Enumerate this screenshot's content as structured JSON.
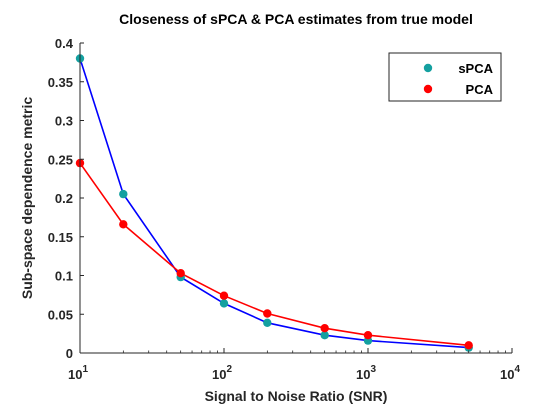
{
  "chart_data": {
    "type": "line",
    "title": "Closeness of sPCA & PCA estimates from true model",
    "xlabel": "Signal to Noise Ratio (SNR)",
    "ylabel": "Sub-space dependence metric",
    "xscale": "log",
    "xlim": [
      10,
      10000
    ],
    "ylim": [
      0,
      0.4
    ],
    "x_ticks": [
      {
        "base": "10",
        "exp": "1",
        "value": 10
      },
      {
        "base": "10",
        "exp": "2",
        "value": 100
      },
      {
        "base": "10",
        "exp": "3",
        "value": 1000
      },
      {
        "base": "10",
        "exp": "4",
        "value": 10000
      }
    ],
    "y_ticks": [
      {
        "label": "0",
        "value": 0
      },
      {
        "label": "0.05",
        "value": 0.05
      },
      {
        "label": "0.1",
        "value": 0.1
      },
      {
        "label": "0.15",
        "value": 0.15
      },
      {
        "label": "0.2",
        "value": 0.2
      },
      {
        "label": "0.25",
        "value": 0.25
      },
      {
        "label": "0.3",
        "value": 0.3
      },
      {
        "label": "0.35",
        "value": 0.35
      },
      {
        "label": "0.4",
        "value": 0.4
      }
    ],
    "grid": false,
    "legend_position": "top-right",
    "series": [
      {
        "name": "sPCA",
        "line_color": "#0000ff",
        "marker_color": "#14a0a0",
        "x": [
          10,
          20,
          50,
          100,
          200,
          500,
          1000,
          5000
        ],
        "y": [
          0.38,
          0.205,
          0.098,
          0.064,
          0.039,
          0.023,
          0.016,
          0.007
        ]
      },
      {
        "name": "PCA",
        "line_color": "#ff0000",
        "marker_color": "#ff0000",
        "x": [
          10,
          20,
          50,
          100,
          200,
          500,
          1000,
          5000
        ],
        "y": [
          0.245,
          0.166,
          0.103,
          0.074,
          0.051,
          0.032,
          0.023,
          0.01
        ]
      }
    ]
  }
}
